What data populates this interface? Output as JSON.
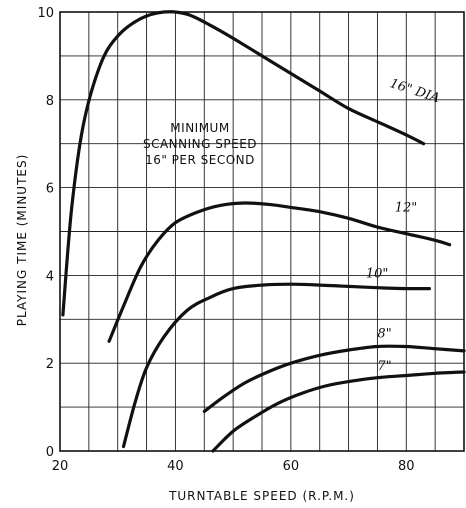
{
  "chart_data": {
    "type": "line",
    "xlabel": "TURNTABLE SPEED (R.P.M.)",
    "ylabel": "PLAYING TIME (MINUTES)",
    "xlim": [
      20,
      90
    ],
    "ylim": [
      0,
      10
    ],
    "x_ticks": [
      20,
      40,
      60,
      80
    ],
    "y_ticks": [
      0,
      2,
      4,
      6,
      8,
      10
    ],
    "grid": true,
    "annotation": [
      "MINIMUM",
      "SCANNING SPEED",
      "16\" PER SECOND"
    ],
    "series": [
      {
        "name": "16\" DIA",
        "label_at": [
          77,
          8.3
        ],
        "points": [
          [
            20.5,
            3.1
          ],
          [
            22,
            5.5
          ],
          [
            24,
            7.4
          ],
          [
            27,
            8.8
          ],
          [
            30,
            9.45
          ],
          [
            34,
            9.85
          ],
          [
            38,
            10.0
          ],
          [
            42,
            9.95
          ],
          [
            46,
            9.7
          ],
          [
            50,
            9.4
          ],
          [
            55,
            9.0
          ],
          [
            60,
            8.6
          ],
          [
            65,
            8.2
          ],
          [
            70,
            7.8
          ],
          [
            75,
            7.5
          ],
          [
            80,
            7.2
          ],
          [
            83,
            7.0
          ]
        ]
      },
      {
        "name": "12\"",
        "label_at": [
          78,
          5.45
        ],
        "points": [
          [
            28.5,
            2.5
          ],
          [
            31,
            3.3
          ],
          [
            34,
            4.2
          ],
          [
            37,
            4.8
          ],
          [
            40,
            5.2
          ],
          [
            44,
            5.45
          ],
          [
            48,
            5.6
          ],
          [
            52,
            5.65
          ],
          [
            56,
            5.62
          ],
          [
            60,
            5.55
          ],
          [
            65,
            5.45
          ],
          [
            70,
            5.3
          ],
          [
            75,
            5.1
          ],
          [
            80,
            4.95
          ],
          [
            85,
            4.8
          ],
          [
            87.5,
            4.7
          ]
        ]
      },
      {
        "name": "10\"",
        "label_at": [
          73,
          3.95
        ],
        "points": [
          [
            31,
            0.1
          ],
          [
            33,
            1.1
          ],
          [
            35,
            1.9
          ],
          [
            38,
            2.6
          ],
          [
            42,
            3.2
          ],
          [
            46,
            3.5
          ],
          [
            50,
            3.7
          ],
          [
            55,
            3.78
          ],
          [
            60,
            3.8
          ],
          [
            65,
            3.78
          ],
          [
            70,
            3.75
          ],
          [
            75,
            3.72
          ],
          [
            80,
            3.7
          ],
          [
            84,
            3.7
          ]
        ]
      },
      {
        "name": "8\"",
        "label_at": [
          75,
          2.58
        ],
        "points": [
          [
            45,
            0.9
          ],
          [
            48,
            1.2
          ],
          [
            52,
            1.55
          ],
          [
            56,
            1.8
          ],
          [
            60,
            2.0
          ],
          [
            65,
            2.18
          ],
          [
            70,
            2.3
          ],
          [
            75,
            2.38
          ],
          [
            80,
            2.38
          ],
          [
            85,
            2.33
          ],
          [
            90,
            2.28
          ]
        ]
      },
      {
        "name": "7\"",
        "label_at": [
          75,
          1.85
        ],
        "points": [
          [
            46.5,
            0
          ],
          [
            50,
            0.45
          ],
          [
            54,
            0.8
          ],
          [
            58,
            1.1
          ],
          [
            62,
            1.32
          ],
          [
            66,
            1.48
          ],
          [
            70,
            1.58
          ],
          [
            75,
            1.67
          ],
          [
            80,
            1.72
          ],
          [
            85,
            1.77
          ],
          [
            90,
            1.8
          ]
        ]
      }
    ]
  }
}
